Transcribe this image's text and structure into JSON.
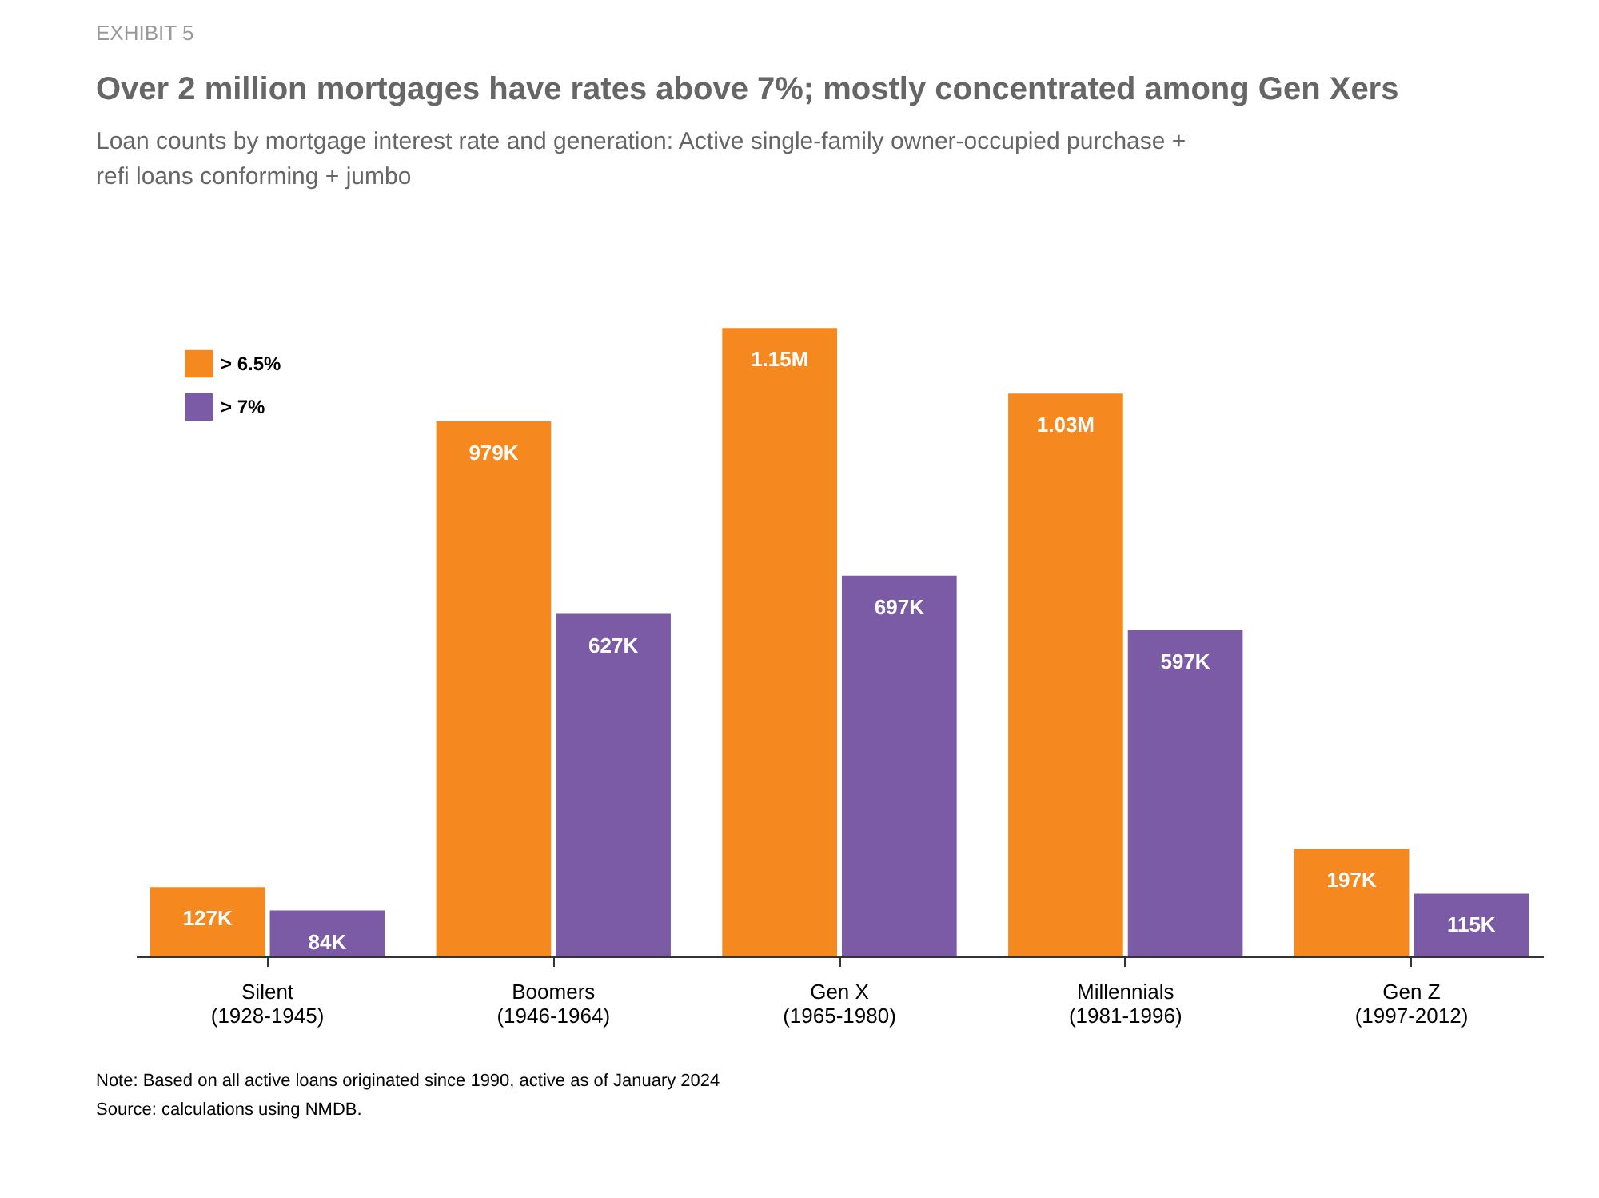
{
  "chart_data": {
    "type": "bar",
    "title": "Over 2 million mortgages have rates above 7%; mostly concentrated among Gen Xers",
    "subtitle": "Loan counts by mortgage interest rate and generation: Active single-family owner-occupied purchase + refi loans conforming + jumbo",
    "categories": [
      "Silent\n(1928-1945)",
      "Boomers\n(1946-1964)",
      "Gen X\n(1965-1980)",
      "Millennials\n(1981-1996)",
      "Gen Z\n(1997-2012)"
    ],
    "series": [
      {
        "name": "> 6.5%",
        "color": "#f5891f",
        "values": [
          127000,
          979000,
          1150000,
          1030000,
          197000
        ],
        "value_labels": [
          "127K",
          "979K",
          "1.15M",
          "1.03M",
          "197K"
        ]
      },
      {
        "name": "> 7%",
        "color": "#7b5aa6",
        "values": [
          84000,
          627000,
          697000,
          597000,
          115000
        ],
        "value_labels": [
          "84K",
          "627K",
          "697K",
          "597K",
          "115K"
        ]
      }
    ],
    "legend": "top left",
    "grid": false,
    "annotations": [
      "EXHIBIT 5",
      "Note: Based on all active loans originated since 1990, active as of January 2024",
      "Source: calculations using NMDB."
    ]
  }
}
